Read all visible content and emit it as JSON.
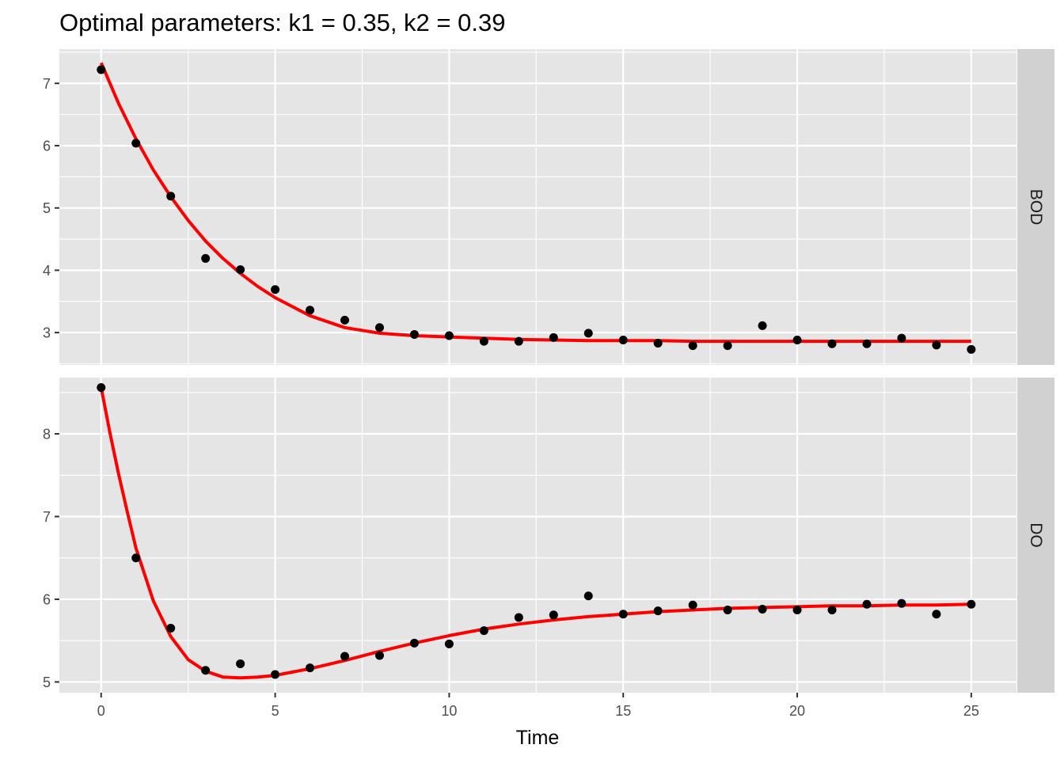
{
  "chart_data": {
    "type": "scatter",
    "title": "Optimal parameters: k1 = 0.35, k2 = 0.39",
    "xlabel": "Time",
    "ylabel": "",
    "xlim": [
      -1.2,
      26.3
    ],
    "x_ticks": [
      0,
      5,
      10,
      15,
      20,
      25
    ],
    "grid": true,
    "fit_line_color": "#ff0000",
    "point_color": "#000000",
    "panel_background": "#e5e5e5",
    "strip_background": "#d1d1d1",
    "panels": [
      {
        "strip": "BOD",
        "ylim": [
          2.48,
          7.55
        ],
        "y_ticks": [
          3,
          4,
          5,
          6,
          7
        ],
        "observed": {
          "x": [
            0,
            1,
            2,
            3,
            4,
            5,
            6,
            7,
            8,
            9,
            10,
            11,
            12,
            13,
            14,
            15,
            16,
            17,
            18,
            19,
            20,
            21,
            22,
            23,
            24,
            25
          ],
          "y": [
            7.22,
            6.04,
            5.19,
            4.19,
            4.01,
            3.69,
            3.36,
            3.2,
            3.08,
            2.97,
            2.95,
            2.86,
            2.86,
            2.92,
            2.99,
            2.88,
            2.83,
            2.79,
            2.79,
            3.11,
            2.88,
            2.82,
            2.82,
            2.91,
            2.8,
            2.73
          ]
        },
        "fitted": {
          "x": [
            0,
            0.5,
            1,
            1.5,
            2,
            2.5,
            3,
            3.5,
            4,
            4.5,
            5,
            6,
            7,
            8,
            9,
            10,
            11,
            12,
            13,
            14,
            15,
            16,
            17,
            18,
            19,
            20,
            21,
            22,
            23,
            24,
            25
          ],
          "y": [
            7.33,
            6.68,
            6.11,
            5.61,
            5.18,
            4.8,
            4.47,
            4.19,
            3.95,
            3.74,
            3.56,
            3.27,
            3.08,
            2.99,
            2.95,
            2.93,
            2.91,
            2.89,
            2.88,
            2.87,
            2.87,
            2.87,
            2.86,
            2.86,
            2.86,
            2.86,
            2.86,
            2.86,
            2.86,
            2.86,
            2.86
          ]
        }
      },
      {
        "strip": "DO",
        "ylim": [
          4.87,
          8.68
        ],
        "y_ticks": [
          5,
          6,
          7,
          8
        ],
        "observed": {
          "x": [
            0,
            1,
            2,
            3,
            4,
            5,
            6,
            7,
            8,
            9,
            10,
            11,
            12,
            13,
            14,
            15,
            16,
            17,
            18,
            19,
            20,
            21,
            22,
            23,
            24,
            25
          ],
          "y": [
            8.56,
            6.5,
            5.65,
            5.14,
            5.22,
            5.09,
            5.17,
            5.31,
            5.32,
            5.47,
            5.46,
            5.62,
            5.78,
            5.81,
            6.04,
            5.82,
            5.86,
            5.93,
            5.87,
            5.88,
            5.87,
            5.87,
            5.94,
            5.95,
            5.82,
            5.94
          ]
        },
        "fitted": {
          "x": [
            0,
            0.25,
            0.5,
            0.75,
            1,
            1.5,
            2,
            2.5,
            3,
            3.5,
            4,
            4.5,
            5,
            5.5,
            6,
            7,
            8,
            9,
            10,
            11,
            12,
            13,
            14,
            15,
            16,
            17,
            18,
            19,
            20,
            21,
            22,
            23,
            24,
            25
          ],
          "y": [
            8.56,
            8.02,
            7.52,
            7.06,
            6.62,
            5.98,
            5.55,
            5.27,
            5.13,
            5.06,
            5.05,
            5.06,
            5.08,
            5.12,
            5.16,
            5.26,
            5.37,
            5.47,
            5.56,
            5.64,
            5.7,
            5.75,
            5.79,
            5.82,
            5.85,
            5.87,
            5.89,
            5.9,
            5.91,
            5.92,
            5.92,
            5.93,
            5.93,
            5.94
          ]
        }
      }
    ]
  }
}
